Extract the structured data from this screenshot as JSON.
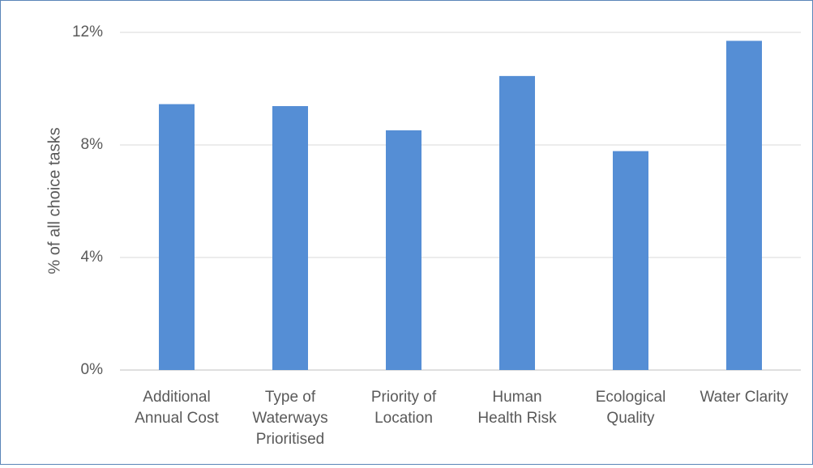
{
  "chart_data": {
    "type": "bar",
    "title": "",
    "xlabel": "",
    "ylabel": "% of all choice tasks",
    "ylim": [
      0,
      12
    ],
    "yticks": [
      {
        "value": 0,
        "label": "0%"
      },
      {
        "value": 4,
        "label": "4%"
      },
      {
        "value": 8,
        "label": "8%"
      },
      {
        "value": 12,
        "label": "12%"
      }
    ],
    "grid": true,
    "legend": "none",
    "bar_color": "#558ED5",
    "categories": [
      [
        "Additional",
        "Annual Cost"
      ],
      [
        "Type of",
        "Waterways",
        "Prioritised"
      ],
      [
        "Priority of",
        "Location"
      ],
      [
        "Human",
        "Health Risk"
      ],
      [
        "Ecological",
        "Quality"
      ],
      [
        "Water Clarity"
      ]
    ],
    "values": [
      9.45,
      9.38,
      8.52,
      10.45,
      7.78,
      11.7
    ]
  }
}
